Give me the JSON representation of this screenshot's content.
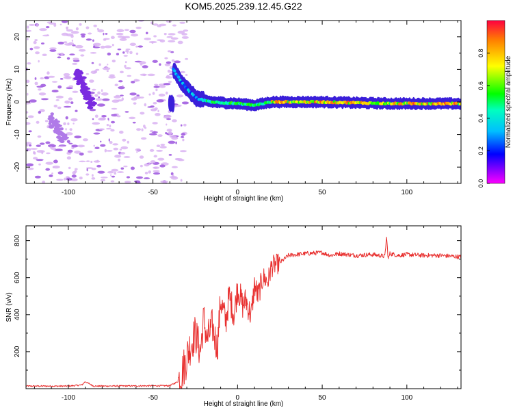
{
  "title": "KOM5.2025.239.12.45.G22",
  "chart_data": [
    {
      "type": "heatmap",
      "title": "KOM5.2025.239.12.45.G22",
      "xlabel": "Height of straight line (km)",
      "ylabel": "Frequency (Hz)",
      "xlim": [
        -125,
        132
      ],
      "ylim": [
        -25,
        25
      ],
      "xticks": [
        -100,
        -50,
        0,
        50,
        100
      ],
      "yticks": [
        -20,
        -10,
        0,
        10,
        20
      ],
      "xtick_labels": [
        "-100",
        "-50",
        "0",
        "50",
        "100"
      ],
      "ytick_labels": [
        "-20",
        "-10",
        "0",
        "10",
        "20"
      ],
      "colorbar": {
        "label": "Normalized spectral amplitude",
        "range": [
          0,
          1
        ],
        "ticks": [
          0.0,
          0.2,
          0.4,
          0.6,
          0.8
        ],
        "tick_labels": [
          "0.0",
          "0.2",
          "0.4",
          "0.6",
          "0.8"
        ]
      },
      "ridge": {
        "description_points_km_hz": [
          [
            -38,
            10
          ],
          [
            -33,
            6
          ],
          [
            -28,
            3
          ],
          [
            -24,
            1
          ],
          [
            -15,
            0
          ],
          [
            0,
            -0.5
          ],
          [
            10,
            -1
          ],
          [
            20,
            0
          ],
          [
            50,
            0
          ],
          [
            90,
            -0.5
          ],
          [
            132,
            -0.5
          ]
        ]
      }
    },
    {
      "type": "line",
      "xlabel": "Height of straight line (km)",
      "ylabel": "SNR (v/v)",
      "xlim": [
        -125,
        132
      ],
      "ylim": [
        0,
        880
      ],
      "xticks": [
        -100,
        -50,
        0,
        50,
        100
      ],
      "yticks": [
        200,
        400,
        600,
        800
      ],
      "xtick_labels": [
        "-100",
        "-50",
        "0",
        "50",
        "100"
      ],
      "ytick_labels": [
        "200",
        "400",
        "600",
        "800"
      ],
      "color": "#e8302f",
      "series": [
        {
          "name": "SNR",
          "x": [
            -125,
            -100,
            -92,
            -90,
            -85,
            -60,
            -40,
            -35,
            -32,
            -28,
            -25,
            -22,
            -20,
            -18,
            -15,
            -12,
            -10,
            -7,
            -5,
            -2,
            0,
            3,
            5,
            8,
            10,
            12,
            15,
            18,
            20,
            25,
            30,
            35,
            40,
            50,
            55,
            60,
            70,
            80,
            87,
            88,
            89,
            90,
            95,
            100,
            110,
            120,
            132
          ],
          "y": [
            14,
            14,
            20,
            38,
            14,
            15,
            16,
            40,
            110,
            230,
            300,
            200,
            380,
            260,
            340,
            220,
            480,
            360,
            500,
            400,
            550,
            450,
            480,
            390,
            560,
            500,
            600,
            580,
            660,
            680,
            720,
            725,
            730,
            735,
            720,
            730,
            720,
            725,
            715,
            820,
            700,
            730,
            720,
            725,
            720,
            720,
            712
          ]
        }
      ]
    }
  ],
  "colors": {
    "line": "#e8302f",
    "axis": "#000000",
    "background": "#ffffff"
  }
}
